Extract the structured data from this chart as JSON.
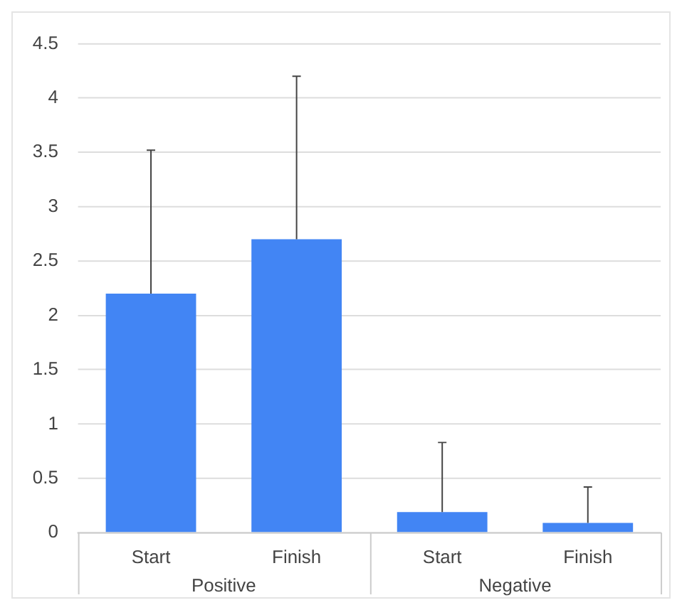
{
  "chart_data": {
    "type": "bar",
    "categories": [
      "Start",
      "Finish",
      "Start",
      "Finish"
    ],
    "values": [
      2.2,
      2.7,
      0.19,
      0.09
    ],
    "color": "#4285f4",
    "errors": [
      [
        2.2,
        3.52
      ],
      [
        2.7,
        4.2
      ],
      [
        0.19,
        0.83
      ],
      [
        0.09,
        0.42
      ]
    ],
    "ylim": [
      0,
      4.5
    ],
    "yticks": [
      0,
      0.5,
      1,
      1.5,
      2,
      2.5,
      3,
      3.5,
      4,
      4.5
    ],
    "grid": "y",
    "annotations": [
      "Positive",
      "Negative"
    ]
  }
}
